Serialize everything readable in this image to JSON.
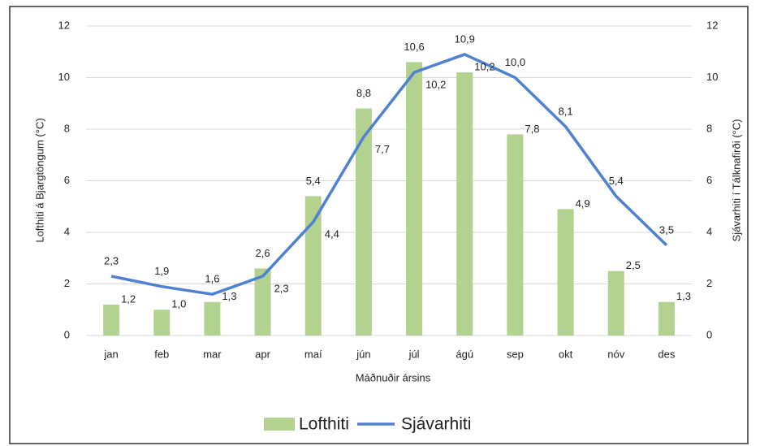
{
  "chart_data": {
    "type": "combo",
    "x_label": "Máðnuðir ársins",
    "y_label": "Lofthiti á Bjargtöngum (°C)",
    "y2_label": "Sjávarhiti í Tálknafirði (°C)",
    "categories": [
      "jan",
      "feb",
      "mar",
      "apr",
      "maí",
      "jún",
      "júl",
      "ágú",
      "sep",
      "okt",
      "nóv",
      "des"
    ],
    "series": [
      {
        "name": "Lofthiti",
        "type": "bar",
        "color": "#b4d28f",
        "axis": "y",
        "values": [
          1.2,
          1.0,
          1.3,
          2.6,
          5.4,
          8.8,
          10.6,
          10.2,
          7.8,
          4.9,
          2.5,
          1.3
        ],
        "value_labels": [
          "1,2",
          "1,0",
          "1,3",
          "2,6",
          "5,4",
          "8,8",
          "10,6",
          "10,2",
          "7,8",
          "4,9",
          "2,5",
          "1,3"
        ]
      },
      {
        "name": "Sjávarhiti",
        "type": "line",
        "color": "#4f81d3",
        "axis": "y2",
        "values": [
          2.3,
          1.9,
          1.6,
          2.3,
          4.4,
          7.7,
          10.2,
          10.9,
          10.0,
          8.1,
          5.4,
          3.5
        ],
        "value_labels": [
          "2,3",
          "1,9",
          "1,6",
          "2,3",
          "4,4",
          "7,7",
          "10,2",
          "10,9",
          "10,0",
          "8,1",
          "5,4",
          "3,5"
        ]
      }
    ],
    "ylim": [
      0,
      12
    ],
    "yticks": [
      0,
      2,
      4,
      6,
      8,
      10,
      12
    ],
    "y2lim": [
      0,
      12
    ],
    "y2ticks": [
      0,
      2,
      4,
      6,
      8,
      10,
      12
    ],
    "grid": true,
    "legend": "bottom"
  }
}
